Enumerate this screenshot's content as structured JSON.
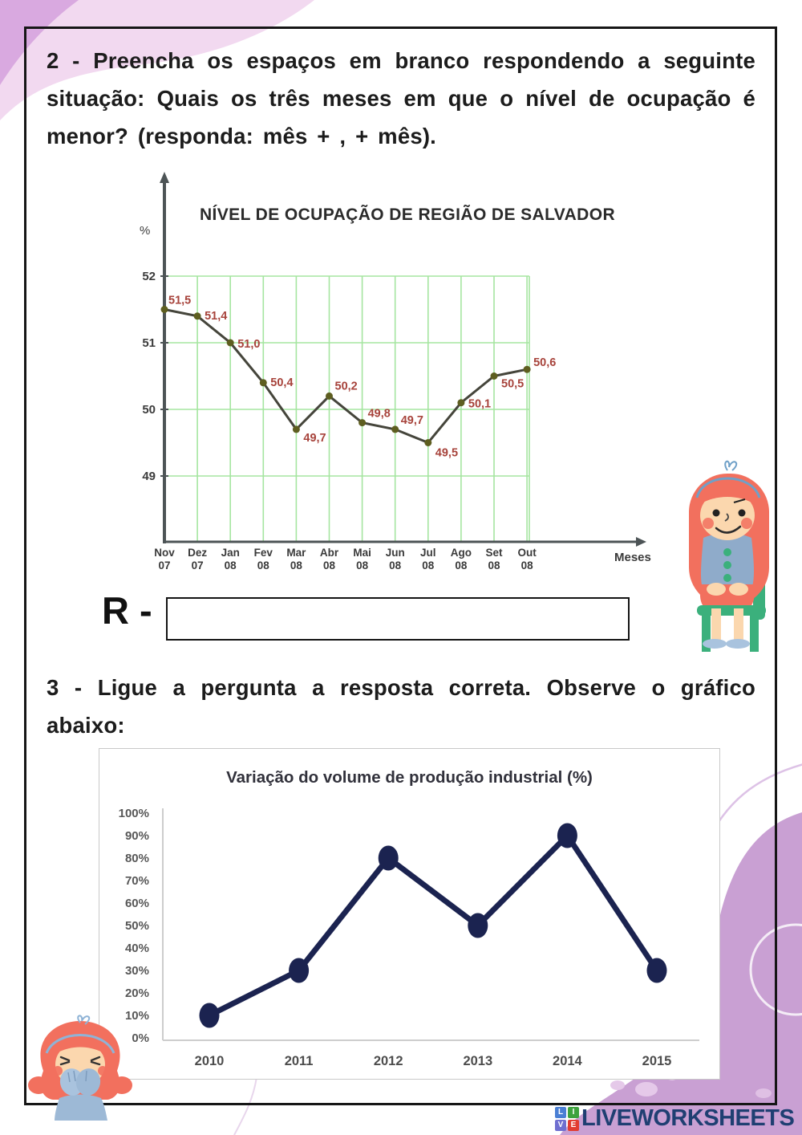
{
  "texts": {
    "question2": "2 - Preencha os espaços em branco respondendo a seguinte situação: Quais os três meses em que o nível de ocupação é menor? (responda: mês + , + mês).",
    "question3": "3 - Ligue a pergunta a resposta correta. Observe o gráfico abaixo:"
  },
  "answer": {
    "label": "R -",
    "value": ""
  },
  "logo": {
    "text": "LIVEWORKSHEETS",
    "squares": [
      "L",
      "I",
      "V",
      "E"
    ]
  },
  "chart_data": [
    {
      "type": "line",
      "title": "NÍVEL DE OCUPAÇÃO DE REGIÃO DE SALVADOR",
      "ylabel": "%",
      "xlabel": "Meses",
      "categories": [
        "Nov 07",
        "Dez 07",
        "Jan 08",
        "Fev 08",
        "Mar 08",
        "Abr 08",
        "Mai 08",
        "Jun 08",
        "Jul 08",
        "Ago 08",
        "Set 08",
        "Out 08"
      ],
      "values": [
        51.5,
        51.4,
        51.0,
        50.4,
        49.7,
        50.2,
        49.8,
        49.7,
        49.5,
        50.1,
        50.5,
        50.6
      ],
      "point_labels": [
        "51,5",
        "51,4",
        "51,0",
        "50,4",
        "49,7",
        "50,2",
        "49,8",
        "49,7",
        "49,5",
        "50,1",
        "50,5",
        "50,6"
      ],
      "yticks": [
        52,
        51,
        50,
        49
      ],
      "ylim": [
        48.4,
        52.6
      ],
      "grid": true,
      "legend": "none",
      "colors": {
        "grid": "#a5e5a0",
        "axis": "#4d5456",
        "line": "#45453b",
        "point": "#5e5e20",
        "point_label": "#a7433b",
        "tick": "#3c3c3c"
      }
    },
    {
      "type": "line",
      "title": "Variação do volume de produção industrial (%)",
      "xlabel": "",
      "ylabel": "",
      "categories": [
        "2010",
        "2011",
        "2012",
        "2013",
        "2014",
        "2015"
      ],
      "values": [
        10,
        30,
        80,
        50,
        90,
        30
      ],
      "yticks": [
        "100%",
        "90%",
        "80%",
        "70%",
        "60%",
        "50%",
        "40%",
        "30%",
        "20%",
        "10%",
        "0%"
      ],
      "ylim": [
        0,
        100
      ],
      "grid": false,
      "legend": "none",
      "colors": {
        "line": "#1b2350",
        "point": "#1b2350",
        "axis": "#cdcdcd",
        "tick": "#575757",
        "xtick": "#4c4c4c"
      }
    }
  ]
}
